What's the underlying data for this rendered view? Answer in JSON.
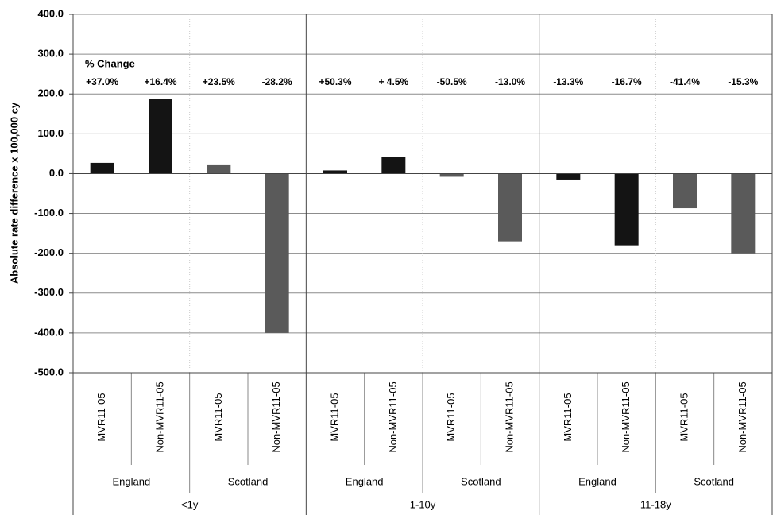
{
  "chart_data": {
    "type": "bar",
    "y_label": "Absolute rate difference x 100,000 cy",
    "annotation_title": "% Change",
    "annotations": [
      "+37.0%",
      "+16.4%",
      "+23.5%",
      "-28.2%",
      "+50.3%",
      "+ 4.5%",
      "-50.5%",
      "-13.0%",
      "-13.3%",
      "-16.7%",
      "-41.4%",
      "-15.3%"
    ],
    "categories": [
      "MVR11-05",
      "Non-MVR11-05",
      "MVR11-05",
      "Non-MVR11-05",
      "MVR11-05",
      "Non-MVR11-05",
      "MVR11-05",
      "Non-MVR11-05",
      "MVR11-05",
      "Non-MVR11-05",
      "MVR11-05",
      "Non-MVR11-05"
    ],
    "groups": [
      "England",
      "Scotland",
      "England",
      "Scotland",
      "England",
      "Scotland"
    ],
    "supergroups": [
      "<1y",
      "1-10y",
      "11-18y"
    ],
    "values": [
      27,
      187,
      23,
      -400,
      8,
      42,
      -8,
      -170,
      -15,
      -180,
      -87,
      -200
    ],
    "colors": [
      "#141414",
      "#141414",
      "#5a5a5a",
      "#5a5a5a",
      "#141414",
      "#141414",
      "#5a5a5a",
      "#5a5a5a",
      "#141414",
      "#141414",
      "#5a5a5a",
      "#5a5a5a"
    ],
    "ylim": [
      -500,
      400
    ],
    "yticks": [
      {
        "value": -500,
        "label": "-500.0"
      },
      {
        "value": -400,
        "label": "-400.0"
      },
      {
        "value": -300,
        "label": "-300.0"
      },
      {
        "value": -200,
        "label": "-200.0"
      },
      {
        "value": -100,
        "label": "-100.0"
      },
      {
        "value": 0,
        "label": "0.0"
      },
      {
        "value": 100,
        "label": "100.0"
      },
      {
        "value": 200,
        "label": "200.0"
      },
      {
        "value": 300,
        "label": "300.0"
      },
      {
        "value": 400,
        "label": "400.0"
      }
    ],
    "grid": true
  }
}
